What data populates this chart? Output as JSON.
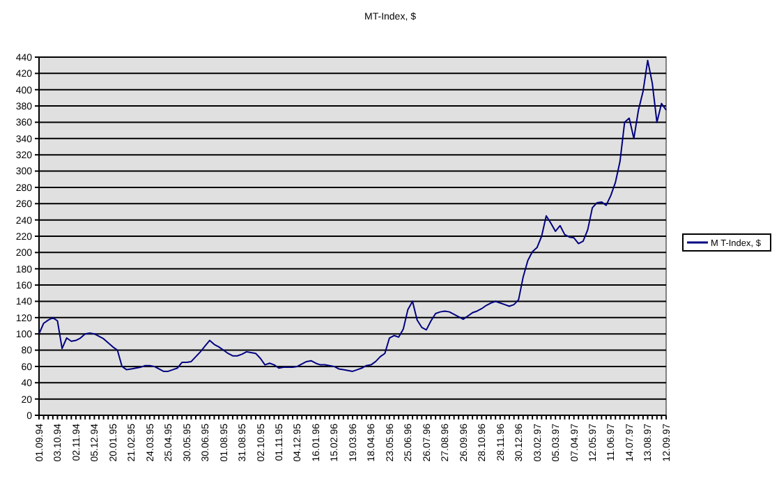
{
  "chart_data": {
    "type": "line",
    "title": "MT-Index, $",
    "categories": [
      "01.09.94",
      null,
      null,
      null,
      "03.10.94",
      null,
      null,
      null,
      "02.11.94",
      null,
      null,
      null,
      "05.12.94",
      null,
      null,
      null,
      "20.01.95",
      null,
      null,
      null,
      "21.02.95",
      null,
      null,
      null,
      "24.03.95",
      null,
      null,
      null,
      "25.04.95",
      null,
      null,
      null,
      "30.05.95",
      null,
      null,
      null,
      "30.06.95",
      null,
      null,
      null,
      "01.08.95",
      null,
      null,
      null,
      "31.08.95",
      null,
      null,
      null,
      "02.10.95",
      null,
      null,
      null,
      "01.11.95",
      null,
      null,
      null,
      "04.12.95",
      null,
      null,
      null,
      "16.01.96",
      null,
      null,
      null,
      "15.02.96",
      null,
      null,
      null,
      "19.03.96",
      null,
      null,
      null,
      "18.04.96",
      null,
      null,
      null,
      "23.05.96",
      null,
      null,
      null,
      "25.06.96",
      null,
      null,
      null,
      "26.07.96",
      null,
      null,
      null,
      "27.08.96",
      null,
      null,
      null,
      "26.09.96",
      null,
      null,
      null,
      "28.10.96",
      null,
      null,
      null,
      "28.11.96",
      null,
      null,
      null,
      "30.12.96",
      null,
      null,
      null,
      "03.02.97",
      null,
      null,
      null,
      "05.03.97",
      null,
      null,
      null,
      "07.04.97",
      null,
      null,
      null,
      "12.05.97",
      null,
      null,
      null,
      "11.06.97",
      null,
      null,
      null,
      "14.07.97",
      null,
      null,
      null,
      "13.08.97",
      null,
      null,
      null,
      "12.09.97"
    ],
    "series": [
      {
        "name": "M T-Index, $",
        "color": "#000080",
        "values": [
          100,
          113,
          117,
          120,
          116,
          82,
          95,
          91,
          92,
          95,
          100,
          101,
          100,
          97,
          94,
          89,
          84,
          80,
          60,
          56,
          57,
          58,
          59,
          61,
          61,
          60,
          57,
          54,
          54,
          56,
          58,
          65,
          65,
          66,
          72,
          78,
          85,
          92,
          87,
          84,
          80,
          76,
          73,
          73,
          75,
          78,
          77,
          76,
          70,
          62,
          64,
          62,
          58,
          59,
          59,
          59,
          60,
          63,
          66,
          67,
          64,
          62,
          62,
          61,
          60,
          57,
          56,
          55,
          54,
          56,
          58,
          61,
          62,
          66,
          72,
          76,
          95,
          98,
          96,
          106,
          130,
          140,
          117,
          108,
          105,
          116,
          125,
          127,
          128,
          127,
          124,
          121,
          118,
          122,
          126,
          128,
          131,
          135,
          138,
          140,
          138,
          136,
          134,
          136,
          142,
          170,
          190,
          201,
          206,
          220,
          245,
          236,
          226,
          233,
          222,
          219,
          218,
          211,
          214,
          228,
          255,
          261,
          262,
          258,
          270,
          286,
          312,
          360,
          365,
          340,
          375,
          398,
          436,
          408,
          360,
          383,
          375
        ]
      }
    ],
    "ylim": [
      0,
      440
    ],
    "yticks": [
      0,
      20,
      40,
      60,
      80,
      100,
      120,
      140,
      160,
      180,
      200,
      220,
      240,
      260,
      280,
      300,
      320,
      340,
      360,
      380,
      400,
      420,
      440
    ],
    "grid": "y",
    "legend": "right"
  }
}
